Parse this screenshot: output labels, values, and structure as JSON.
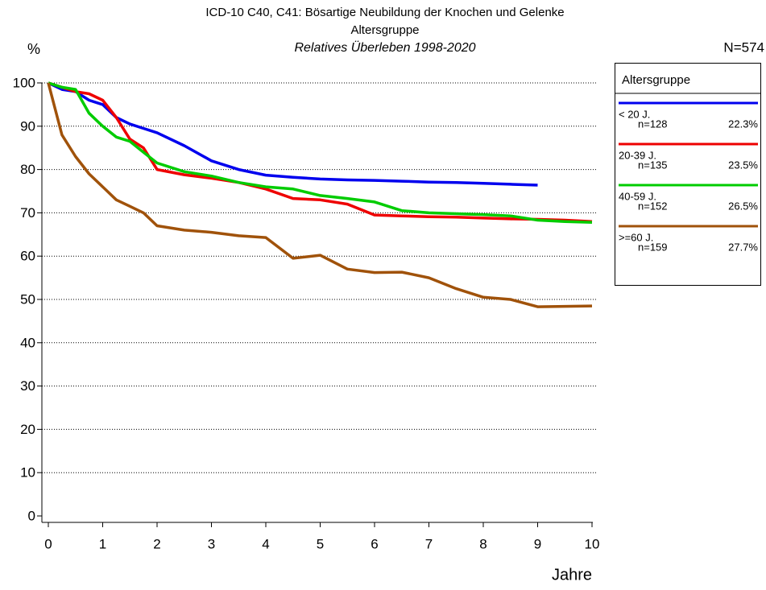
{
  "chart_data": {
    "type": "line",
    "title": "ICD-10 C40, C41: Bösartige Neubildung der Knochen und Gelenke",
    "subtitle": "Altersgruppe",
    "subtitle2": "Relatives Überleben 1998-2020",
    "ylabel": "%",
    "xlabel": "Jahre",
    "note": "N=574",
    "legend_title": "Altersgruppe",
    "legend": "right",
    "grid": true,
    "x": [
      0,
      0.25,
      0.5,
      0.75,
      1,
      1.25,
      1.5,
      1.75,
      2,
      2.5,
      3,
      3.5,
      4,
      4.5,
      5,
      5.5,
      6,
      6.5,
      7,
      7.5,
      8,
      8.5,
      9,
      9.5,
      10
    ],
    "xlim": [
      0,
      10
    ],
    "xticks": [
      0,
      1,
      2,
      3,
      4,
      5,
      6,
      7,
      8,
      9,
      10
    ],
    "ylim": [
      0,
      100
    ],
    "yticks": [
      0,
      10,
      20,
      30,
      40,
      50,
      60,
      70,
      80,
      90,
      100
    ],
    "series": [
      {
        "name": "< 20 J.",
        "n": "n=128",
        "share": "22.3%",
        "color": "#0000ee",
        "values": [
          100,
          98.5,
          98,
          96,
          95,
          92,
          90.5,
          89.5,
          88.5,
          85.5,
          82,
          80,
          78.7,
          78.2,
          77.8,
          77.6,
          77.5,
          77.3,
          77.1,
          77,
          76.8,
          76.6,
          76.4,
          null,
          null
        ]
      },
      {
        "name": "20-39 J.",
        "n": "n=135",
        "share": "23.5%",
        "color": "#ee0000",
        "values": [
          100,
          99,
          98,
          97.5,
          96,
          92,
          87,
          85,
          80,
          78.8,
          78,
          77,
          75.5,
          73.3,
          73,
          72,
          69.5,
          69.3,
          69.1,
          69,
          68.8,
          68.6,
          68.5,
          68.3,
          68
        ]
      },
      {
        "name": "40-59 J.",
        "n": "n=152",
        "share": "26.5%",
        "color": "#00cc00",
        "values": [
          100,
          99,
          98.5,
          93,
          90,
          87.5,
          86.5,
          84,
          81.5,
          79.5,
          78.5,
          77,
          76,
          75.5,
          74,
          73.3,
          72.5,
          70.5,
          70,
          69.8,
          69.6,
          69.3,
          68.3,
          68,
          67.8
        ]
      },
      {
        "name": ">=60 J.",
        "n": "n=159",
        "share": "27.7%",
        "color": "#a0520a",
        "values": [
          100,
          88,
          83,
          79,
          76,
          73,
          71.5,
          70,
          67,
          66,
          65.5,
          64.7,
          64.3,
          59.5,
          60.2,
          57,
          56.2,
          56.3,
          55,
          52.5,
          50.5,
          50,
          48.3,
          48.4,
          48.5
        ]
      }
    ]
  }
}
